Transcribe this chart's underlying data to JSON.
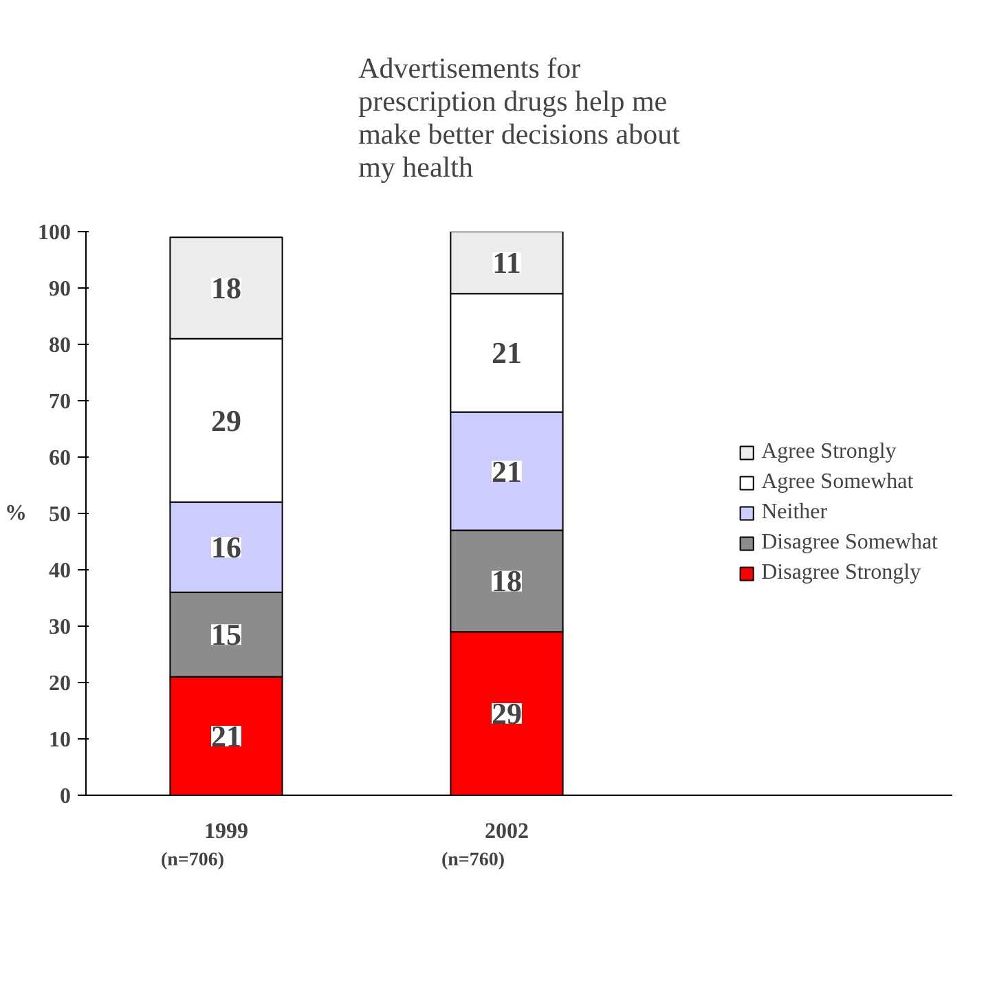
{
  "chart_data": {
    "type": "bar",
    "stacked": true,
    "title": "Advertisements for\nprescription drugs help me\nmake better decisions about\nmy health",
    "ylabel": "%",
    "categories": [
      "1999",
      "2002"
    ],
    "series": [
      {
        "name": "Disagree Strongly",
        "color": "#ff0000",
        "values": [
          21,
          29
        ]
      },
      {
        "name": "Disagree Somewhat",
        "color": "#8c8c8c",
        "values": [
          15,
          18
        ]
      },
      {
        "name": "Neither",
        "color": "#ccccff",
        "values": [
          16,
          21
        ]
      },
      {
        "name": "Agree Somewhat",
        "color": "#ffffff",
        "values": [
          29,
          21
        ]
      },
      {
        "name": "Agree Strongly",
        "color": "#ececec",
        "values": [
          18,
          11
        ]
      }
    ],
    "ylim": [
      0,
      100
    ],
    "yticks": [
      0,
      10,
      20,
      30,
      40,
      50,
      60,
      70,
      80,
      90,
      100
    ],
    "grid": false,
    "legend": "right",
    "data_labels": true,
    "annotations": [
      "(n=706)",
      "(n=760)"
    ]
  }
}
